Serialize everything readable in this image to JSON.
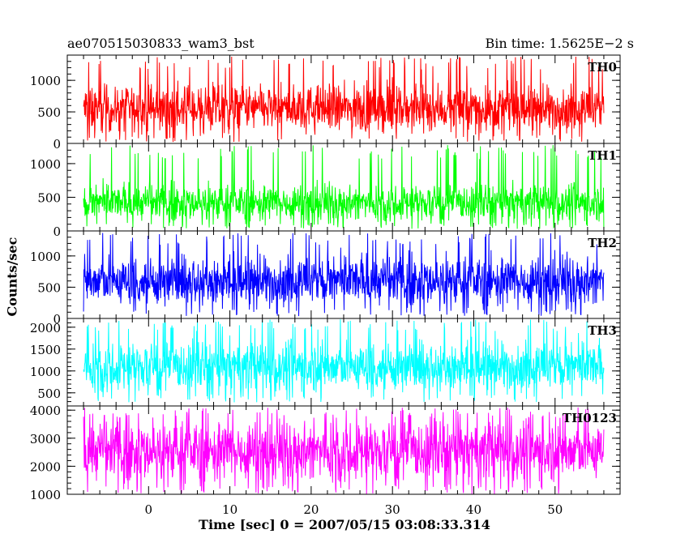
{
  "header": {
    "title": "ae070515030833_wam3_bst",
    "bin_time": "Bin time: 1.5625E−2 s"
  },
  "chart_data": {
    "type": "line",
    "xlabel": "Time [sec] 0 = 2007/05/15 03:08:33.314",
    "ylabel": "Counts/sec",
    "xlim": [
      -10,
      58
    ],
    "x_range_data": [
      -8,
      56
    ],
    "x_ticks": [
      0,
      10,
      20,
      30,
      40,
      50
    ],
    "panels": [
      {
        "name": "TH0",
        "color": "#ff0000",
        "ylim": [
          0,
          1400
        ],
        "y_ticks": [
          0,
          500,
          1000
        ],
        "data_range": [
          20,
          1380
        ],
        "mean": 550
      },
      {
        "name": "TH1",
        "color": "#00ff00",
        "ylim": [
          0,
          1300
        ],
        "y_ticks": [
          0,
          500,
          1000
        ],
        "data_range": [
          30,
          1280
        ],
        "mean": 420
      },
      {
        "name": "TH2",
        "color": "#0000ff",
        "ylim": [
          0,
          1400
        ],
        "y_ticks": [
          0,
          500,
          1000
        ],
        "data_range": [
          30,
          1370
        ],
        "mean": 600
      },
      {
        "name": "TH3",
        "color": "#00ffff",
        "ylim": [
          200,
          2200
        ],
        "y_ticks": [
          500,
          1000,
          1500,
          2000
        ],
        "data_range": [
          280,
          2180
        ],
        "mean": 1100
      },
      {
        "name": "TH0123",
        "color": "#ff00ff",
        "ylim": [
          1000,
          4150
        ],
        "y_ticks": [
          1000,
          2000,
          3000,
          4000
        ],
        "data_range": [
          1000,
          4100
        ],
        "mean": 2550
      }
    ]
  }
}
